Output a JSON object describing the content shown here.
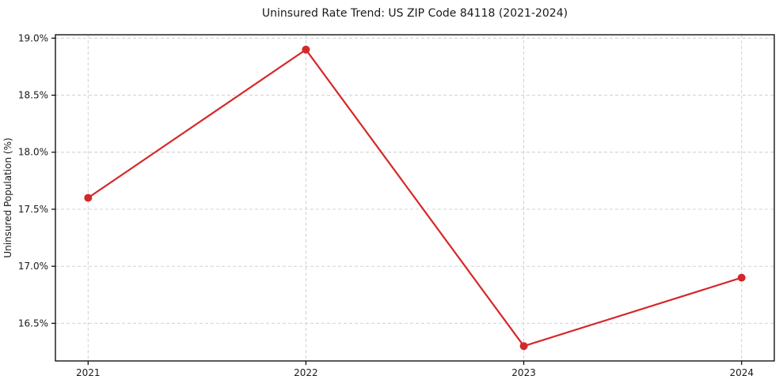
{
  "figure": {
    "background": "#ffffff"
  },
  "chart_data": {
    "type": "line",
    "title": "Uninsured Rate Trend: US ZIP Code 84118 (2021-2024)",
    "xlabel": "",
    "ylabel": "Uninsured Population (%)",
    "categories": [
      "2021",
      "2022",
      "2023",
      "2024"
    ],
    "x": [
      2021,
      2022,
      2023,
      2024
    ],
    "series": [
      {
        "name": "Uninsured rate",
        "values": [
          17.6,
          18.9,
          16.3,
          16.9
        ],
        "color": "#d62728",
        "marker": "circle"
      }
    ],
    "xticks": [
      2021,
      2022,
      2023,
      2024
    ],
    "xtick_labels": [
      "2021",
      "2022",
      "2023",
      "2024"
    ],
    "yticks": [
      16.5,
      17.0,
      17.5,
      18.0,
      18.5,
      19.0
    ],
    "ytick_labels": [
      "16.5%",
      "17.0%",
      "17.5%",
      "18.0%",
      "18.5%",
      "19.0%"
    ],
    "xlim": [
      2020.85,
      2024.15
    ],
    "ylim": [
      16.17,
      19.03
    ],
    "grid": true,
    "grid_style": "dashed",
    "grid_color": "#cccccc",
    "spine_color": "#000000",
    "text_color": "#1a1a1a",
    "legend_position": "none"
  }
}
